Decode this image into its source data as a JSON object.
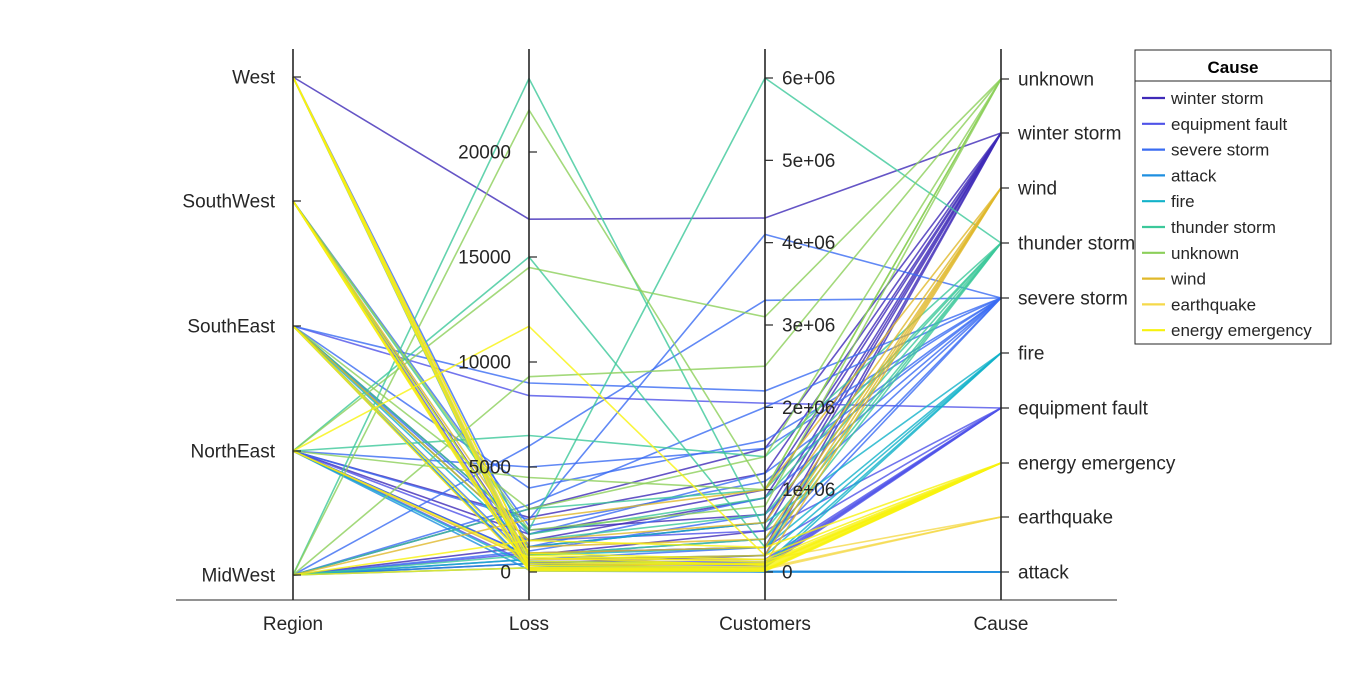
{
  "chart_data": {
    "type": "parallel-coordinates",
    "title": "",
    "legend_title": "Cause",
    "legend_position": "top-right",
    "grid": false,
    "coordinates": [
      {
        "name": "Region",
        "kind": "categorical",
        "categories": [
          "MidWest",
          "NorthEast",
          "SouthEast",
          "SouthWest",
          "West"
        ]
      },
      {
        "name": "Loss",
        "kind": "numeric",
        "ticks": [
          0,
          5000,
          10000,
          15000,
          20000
        ],
        "tick_labels": [
          "0",
          "5000",
          "10000",
          "15000",
          "20000"
        ]
      },
      {
        "name": "Customers",
        "kind": "numeric",
        "ticks": [
          0,
          1000000,
          2000000,
          3000000,
          4000000,
          5000000,
          6000000
        ],
        "tick_labels": [
          "0",
          "1e+06",
          "2e+06",
          "3e+06",
          "4e+06",
          "5e+06",
          "6e+06"
        ]
      },
      {
        "name": "Cause",
        "kind": "categorical",
        "categories": [
          "attack",
          "earthquake",
          "energy emergency",
          "equipment fault",
          "fire",
          "severe storm",
          "thunder storm",
          "wind",
          "winter storm",
          "unknown"
        ]
      }
    ],
    "series": [
      {
        "name": "winter storm",
        "color": "#3F2AB8",
        "lines": [
          [
            "MidWest",
            1200,
            600000,
            "winter storm"
          ],
          [
            "NorthEast",
            2600,
            1200000,
            "winter storm"
          ],
          [
            "SouthEast",
            1500,
            900000,
            "winter storm"
          ],
          [
            "West",
            16800,
            4300000,
            "winter storm"
          ],
          [
            "SouthWest",
            900,
            300000,
            "winter storm"
          ],
          [
            "MidWest",
            3000,
            1500000,
            "winter storm"
          ],
          [
            "NorthEast",
            800,
            500000,
            "winter storm"
          ],
          [
            "SouthEast",
            2000,
            700000,
            "winter storm"
          ],
          [
            "MidWest",
            400,
            200000,
            "winter storm"
          ],
          [
            "NorthEast",
            1800,
            1000000,
            "winter storm"
          ]
        ]
      },
      {
        "name": "equipment fault",
        "color": "#4F52E8",
        "lines": [
          [
            "SouthEast",
            8400,
            2050000,
            "equipment fault"
          ],
          [
            "MidWest",
            600,
            150000,
            "equipment fault"
          ],
          [
            "West",
            300,
            100000,
            "equipment fault"
          ],
          [
            "NorthEast",
            400,
            80000,
            "equipment fault"
          ],
          [
            "SouthEast",
            200,
            60000,
            "equipment fault"
          ],
          [
            "MidWest",
            900,
            300000,
            "equipment fault"
          ],
          [
            "SouthWest",
            500,
            120000,
            "equipment fault"
          ],
          [
            "NorthEast",
            1500,
            500000,
            "equipment fault"
          ]
        ]
      },
      {
        "name": "severe storm",
        "color": "#3A6CF2",
        "lines": [
          [
            "SouthEast",
            9000,
            2200000,
            "severe storm"
          ],
          [
            "MidWest",
            6000,
            3300000,
            "severe storm"
          ],
          [
            "NorthEast",
            2500,
            4100000,
            "severe storm"
          ],
          [
            "SouthEast",
            1800,
            1200000,
            "severe storm"
          ],
          [
            "MidWest",
            3200,
            2000000,
            "severe storm"
          ],
          [
            "West",
            1200,
            900000,
            "severe storm"
          ],
          [
            "NorthEast",
            800,
            400000,
            "severe storm"
          ],
          [
            "SouthEast",
            4000,
            1600000,
            "severe storm"
          ],
          [
            "MidWest",
            1000,
            700000,
            "severe storm"
          ],
          [
            "SouthWest",
            2200,
            1100000,
            "severe storm"
          ],
          [
            "NorthEast",
            5000,
            1500000,
            "severe storm"
          ],
          [
            "SouthEast",
            600,
            300000,
            "severe storm"
          ]
        ]
      },
      {
        "name": "attack",
        "color": "#1E8FE0",
        "lines": [
          [
            "MidWest",
            200,
            5000,
            "attack"
          ],
          [
            "NorthEast",
            100,
            2000,
            "attack"
          ],
          [
            "SouthEast",
            300,
            8000,
            "attack"
          ],
          [
            "West",
            50,
            1000,
            "attack"
          ],
          [
            "SouthWest",
            150,
            3000,
            "attack"
          ],
          [
            "MidWest",
            400,
            10000,
            "attack"
          ]
        ]
      },
      {
        "name": "fire",
        "color": "#12B2C9",
        "lines": [
          [
            "West",
            500,
            100000,
            "fire"
          ],
          [
            "SouthWest",
            800,
            300000,
            "fire"
          ],
          [
            "SouthEast",
            1200,
            600000,
            "fire"
          ],
          [
            "NorthEast",
            300,
            50000,
            "fire"
          ],
          [
            "MidWest",
            600,
            200000,
            "fire"
          ]
        ]
      },
      {
        "name": "thunder storm",
        "color": "#3CC89A",
        "lines": [
          [
            "MidWest",
            23500,
            500000,
            "thunder storm"
          ],
          [
            "SouthEast",
            2000,
            6000000,
            "thunder storm"
          ],
          [
            "NorthEast",
            15000,
            300000,
            "thunder storm"
          ],
          [
            "MidWest",
            3000,
            1000000,
            "thunder storm"
          ],
          [
            "SouthEast",
            1500,
            700000,
            "thunder storm"
          ],
          [
            "NorthEast",
            6500,
            1400000,
            "thunder storm"
          ],
          [
            "MidWest",
            800,
            400000,
            "thunder storm"
          ],
          [
            "SouthWest",
            1800,
            900000,
            "thunder storm"
          ]
        ]
      },
      {
        "name": "unknown",
        "color": "#8CCF5A",
        "lines": [
          [
            "MidWest",
            22000,
            1000000,
            "unknown"
          ],
          [
            "NorthEast",
            14500,
            3100000,
            "unknown"
          ],
          [
            "MidWest",
            9300,
            2500000,
            "unknown"
          ],
          [
            "SouthEast",
            3000,
            1400000,
            "unknown"
          ],
          [
            "NorthEast",
            4500,
            1000000,
            "unknown"
          ],
          [
            "SouthWest",
            2000,
            800000,
            "unknown"
          ]
        ]
      },
      {
        "name": "wind",
        "color": "#E0B82A",
        "lines": [
          [
            "SouthWest",
            300,
            100000,
            "wind"
          ],
          [
            "West",
            900,
            300000,
            "wind"
          ],
          [
            "SouthEast",
            1500,
            600000,
            "wind"
          ],
          [
            "NorthEast",
            600,
            200000,
            "wind"
          ],
          [
            "MidWest",
            2500,
            1000000,
            "wind"
          ],
          [
            "SouthWest",
            1200,
            400000,
            "wind"
          ]
        ]
      },
      {
        "name": "earthquake",
        "color": "#F5D94A",
        "lines": [
          [
            "West",
            200,
            50000,
            "earthquake"
          ],
          [
            "West",
            600,
            150000,
            "earthquake"
          ],
          [
            "SouthWest",
            100,
            30000,
            "earthquake"
          ]
        ]
      },
      {
        "name": "energy emergency",
        "color": "#F7F20E",
        "lines": [
          [
            "West",
            100,
            20000,
            "energy emergency"
          ],
          [
            "SouthWest",
            300,
            60000,
            "energy emergency"
          ],
          [
            "SouthEast",
            500,
            100000,
            "energy emergency"
          ],
          [
            "NorthEast",
            11700,
            200000,
            "energy emergency"
          ],
          [
            "MidWest",
            200,
            40000,
            "energy emergency"
          ],
          [
            "West",
            900,
            150000,
            "energy emergency"
          ],
          [
            "SouthWest",
            50,
            10000,
            "energy emergency"
          ],
          [
            "NorthEast",
            700,
            80000,
            "energy emergency"
          ],
          [
            "SouthEast",
            150,
            30000,
            "energy emergency"
          ],
          [
            "MidWest",
            1500,
            300000,
            "energy emergency"
          ],
          [
            "West",
            400,
            90000,
            "energy emergency"
          ],
          [
            "SouthWest",
            800,
            120000,
            "energy emergency"
          ]
        ]
      }
    ]
  }
}
